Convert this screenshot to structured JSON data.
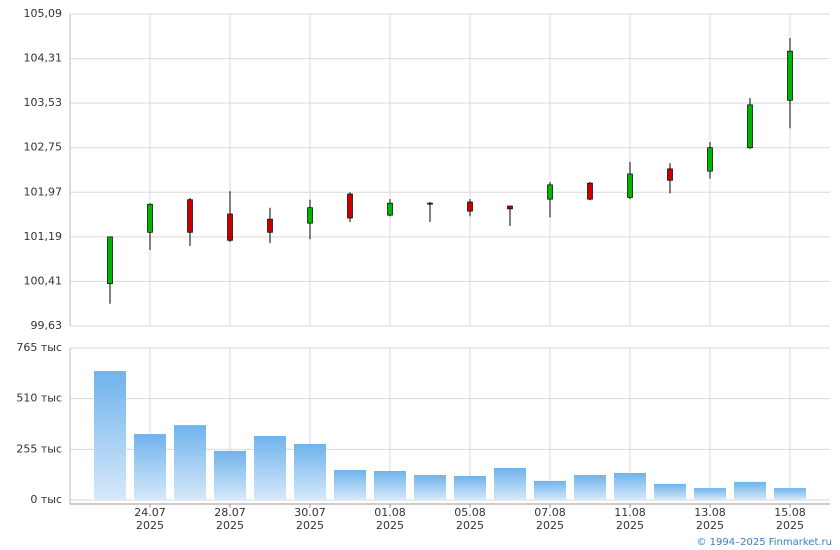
{
  "chart_data": {
    "type": "candlestick",
    "categories": [
      null,
      "24.07",
      null,
      "28.07",
      null,
      "30.07",
      null,
      "01.08",
      null,
      "05.08",
      null,
      "07.08",
      null,
      "11.08",
      null,
      "13.08",
      null,
      "15.08"
    ],
    "year_label": "2025",
    "open": [
      100.37,
      101.27,
      101.84,
      101.59,
      101.5,
      101.43,
      101.94,
      101.57,
      101.78,
      101.8,
      101.73,
      101.85,
      102.13,
      101.88,
      102.38,
      102.34,
      102.75,
      103.58
    ],
    "high": [
      101.19,
      101.78,
      101.87,
      101.99,
      101.7,
      101.84,
      101.97,
      101.85,
      101.8,
      101.85,
      101.73,
      102.15,
      102.15,
      102.5,
      102.48,
      102.85,
      103.62,
      104.67
    ],
    "low": [
      100.02,
      100.96,
      101.03,
      101.1,
      101.08,
      101.15,
      101.45,
      101.55,
      101.45,
      101.55,
      101.38,
      101.53,
      101.83,
      101.85,
      101.95,
      102.21,
      102.73,
      103.09
    ],
    "close": [
      101.19,
      101.76,
      101.27,
      101.13,
      101.27,
      101.7,
      101.52,
      101.78,
      101.78,
      101.64,
      101.68,
      102.1,
      101.85,
      102.29,
      102.18,
      102.75,
      103.5,
      104.44
    ],
    "up_color": "#00b400",
    "down_color": "#c80000",
    "ylim": [
      99.63,
      105.09
    ],
    "yticks": [
      {
        "value": 99.63,
        "label": "99,63"
      },
      {
        "value": 100.41,
        "label": "100,41"
      },
      {
        "value": 101.19,
        "label": "101,19"
      },
      {
        "value": 101.97,
        "label": "101,97"
      },
      {
        "value": 102.75,
        "label": "102,75"
      },
      {
        "value": 103.53,
        "label": "103,53"
      },
      {
        "value": 104.31,
        "label": "104,31"
      },
      {
        "value": 105.09,
        "label": "105,09"
      }
    ],
    "volume": {
      "type": "bar",
      "color": "#7ab8ee",
      "values": [
        649,
        332,
        377,
        247,
        322,
        282,
        151,
        146,
        126,
        121,
        161,
        96,
        126,
        136,
        81,
        60,
        91,
        60
      ],
      "ylim": [
        0,
        765
      ],
      "yticks": [
        {
          "value": 0,
          "label": "0 тыс"
        },
        {
          "value": 255,
          "label": "255 тыс"
        },
        {
          "value": 510,
          "label": "510 тыс"
        },
        {
          "value": 765,
          "label": "765 тыс"
        }
      ]
    }
  },
  "footer": "© 1994–2025 Finmarket.ru"
}
